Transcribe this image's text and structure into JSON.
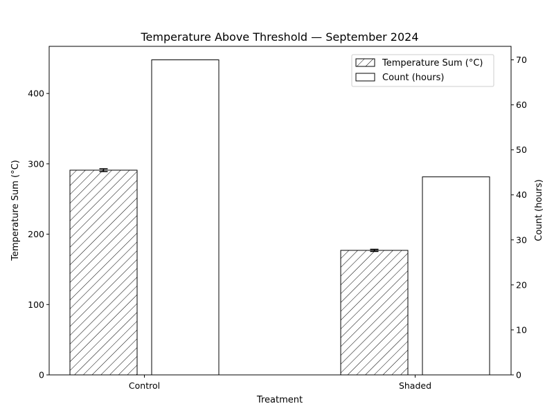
{
  "chart_data": {
    "type": "bar",
    "title": "Temperature Above Threshold — September 2024",
    "xlabel": "Treatment",
    "categories": [
      "Control",
      "Shaded"
    ],
    "left_axis": {
      "label": "Temperature Sum (°C)",
      "ylim": [
        0,
        467
      ],
      "ticks": [
        0,
        100,
        200,
        300,
        400
      ]
    },
    "right_axis": {
      "label": "Count (hours)",
      "ylim": [
        0,
        73
      ],
      "ticks": [
        0,
        10,
        20,
        30,
        40,
        50,
        60,
        70
      ]
    },
    "series": [
      {
        "name": "Temperature Sum (°C)",
        "axis": "left",
        "pattern": "hatched",
        "values": [
          291,
          177
        ],
        "errors": [
          2,
          1.5
        ]
      },
      {
        "name": "Count (hours)",
        "axis": "right",
        "pattern": "plain",
        "values": [
          70,
          44
        ]
      }
    ],
    "legend": {
      "placement": "top-right"
    },
    "grid": false,
    "colors": {
      "fill": "#ffffff",
      "stroke": "#000000"
    }
  }
}
